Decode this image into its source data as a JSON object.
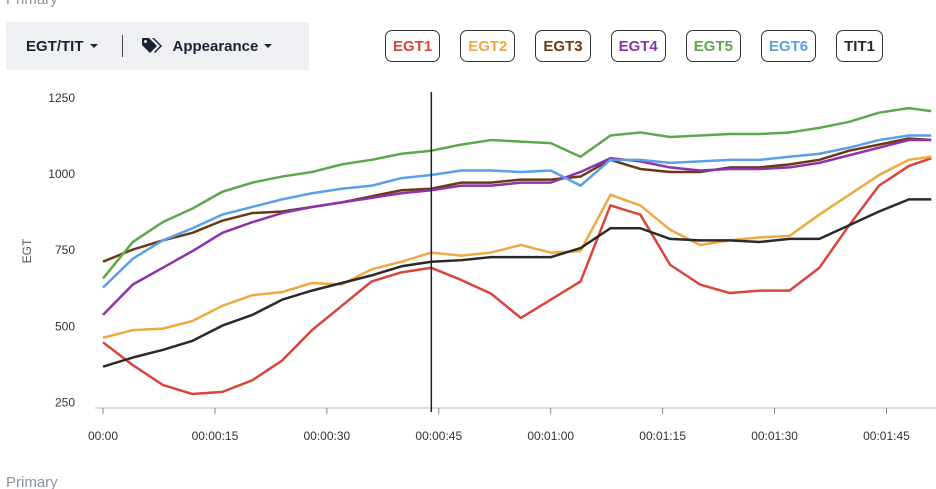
{
  "header": {
    "label": "Primary"
  },
  "toolbar": {
    "metric": "EGT/TIT",
    "appearance": "Appearance"
  },
  "footer": {
    "label": "Primary"
  },
  "chart_data": {
    "type": "line",
    "ylabel": "EGT",
    "x": [
      0,
      4,
      8,
      12,
      16,
      20,
      24,
      28,
      32,
      36,
      40,
      44,
      48,
      52,
      56,
      60,
      64,
      68,
      72,
      76,
      80,
      84,
      88,
      92,
      96,
      100,
      104,
      108,
      111
    ],
    "xlim": [
      0,
      111.5
    ],
    "xticks": [
      {
        "value": 0,
        "label": "00:00"
      },
      {
        "value": 15,
        "label": "00:00:15"
      },
      {
        "value": 30,
        "label": "00:00:30"
      },
      {
        "value": 45,
        "label": "00:00:45"
      },
      {
        "value": 60,
        "label": "00:01:00"
      },
      {
        "value": 75,
        "label": "00:01:15"
      },
      {
        "value": 90,
        "label": "00:01:30"
      },
      {
        "value": 105,
        "label": "00:01:45"
      }
    ],
    "ylim": [
      234,
      1273
    ],
    "yticks": [
      250,
      500,
      750,
      1000,
      1250
    ],
    "grid": false,
    "cursor": 44,
    "series": [
      {
        "name": "EGT1",
        "color": "#d8453b",
        "values": [
          450,
          375,
          310,
          280,
          287,
          325,
          390,
          490,
          570,
          650,
          680,
          695,
          655,
          610,
          530,
          590,
          650,
          900,
          870,
          705,
          640,
          612,
          620,
          620,
          695,
          835,
          965,
          1030,
          1055
        ]
      },
      {
        "name": "EGT2",
        "color": "#f0a843",
        "values": [
          465,
          490,
          495,
          520,
          570,
          605,
          615,
          645,
          640,
          690,
          715,
          745,
          735,
          745,
          770,
          745,
          750,
          935,
          900,
          820,
          770,
          785,
          795,
          800,
          870,
          935,
          1000,
          1050,
          1060
        ]
      },
      {
        "name": "EGT3",
        "color": "#6b3a14",
        "values": [
          715,
          755,
          785,
          810,
          850,
          875,
          880,
          895,
          910,
          930,
          950,
          955,
          975,
          975,
          985,
          985,
          995,
          1050,
          1020,
          1010,
          1010,
          1025,
          1025,
          1035,
          1050,
          1080,
          1100,
          1120,
          1115
        ]
      },
      {
        "name": "EGT4",
        "color": "#8d33ad",
        "values": [
          540,
          640,
          695,
          750,
          810,
          845,
          875,
          895,
          910,
          925,
          940,
          950,
          965,
          965,
          975,
          975,
          1010,
          1055,
          1045,
          1025,
          1015,
          1020,
          1020,
          1025,
          1040,
          1065,
          1090,
          1115,
          1115
        ]
      },
      {
        "name": "EGT5",
        "color": "#5ca84c",
        "values": [
          660,
          780,
          845,
          890,
          945,
          975,
          995,
          1010,
          1035,
          1050,
          1070,
          1080,
          1100,
          1115,
          1110,
          1105,
          1060,
          1130,
          1140,
          1125,
          1130,
          1135,
          1135,
          1140,
          1155,
          1175,
          1205,
          1220,
          1210
        ]
      },
      {
        "name": "EGT6",
        "color": "#5ba0e6",
        "values": [
          630,
          725,
          785,
          825,
          870,
          895,
          920,
          940,
          955,
          965,
          990,
          1000,
          1015,
          1015,
          1010,
          1015,
          965,
          1050,
          1050,
          1040,
          1045,
          1050,
          1050,
          1060,
          1070,
          1090,
          1115,
          1130,
          1130
        ]
      },
      {
        "name": "TIT1",
        "color": "#2a2a2a",
        "values": [
          370,
          400,
          425,
          455,
          505,
          540,
          590,
          620,
          645,
          670,
          700,
          715,
          720,
          730,
          730,
          730,
          760,
          825,
          825,
          790,
          785,
          785,
          780,
          790,
          790,
          835,
          880,
          920,
          920
        ]
      }
    ]
  }
}
